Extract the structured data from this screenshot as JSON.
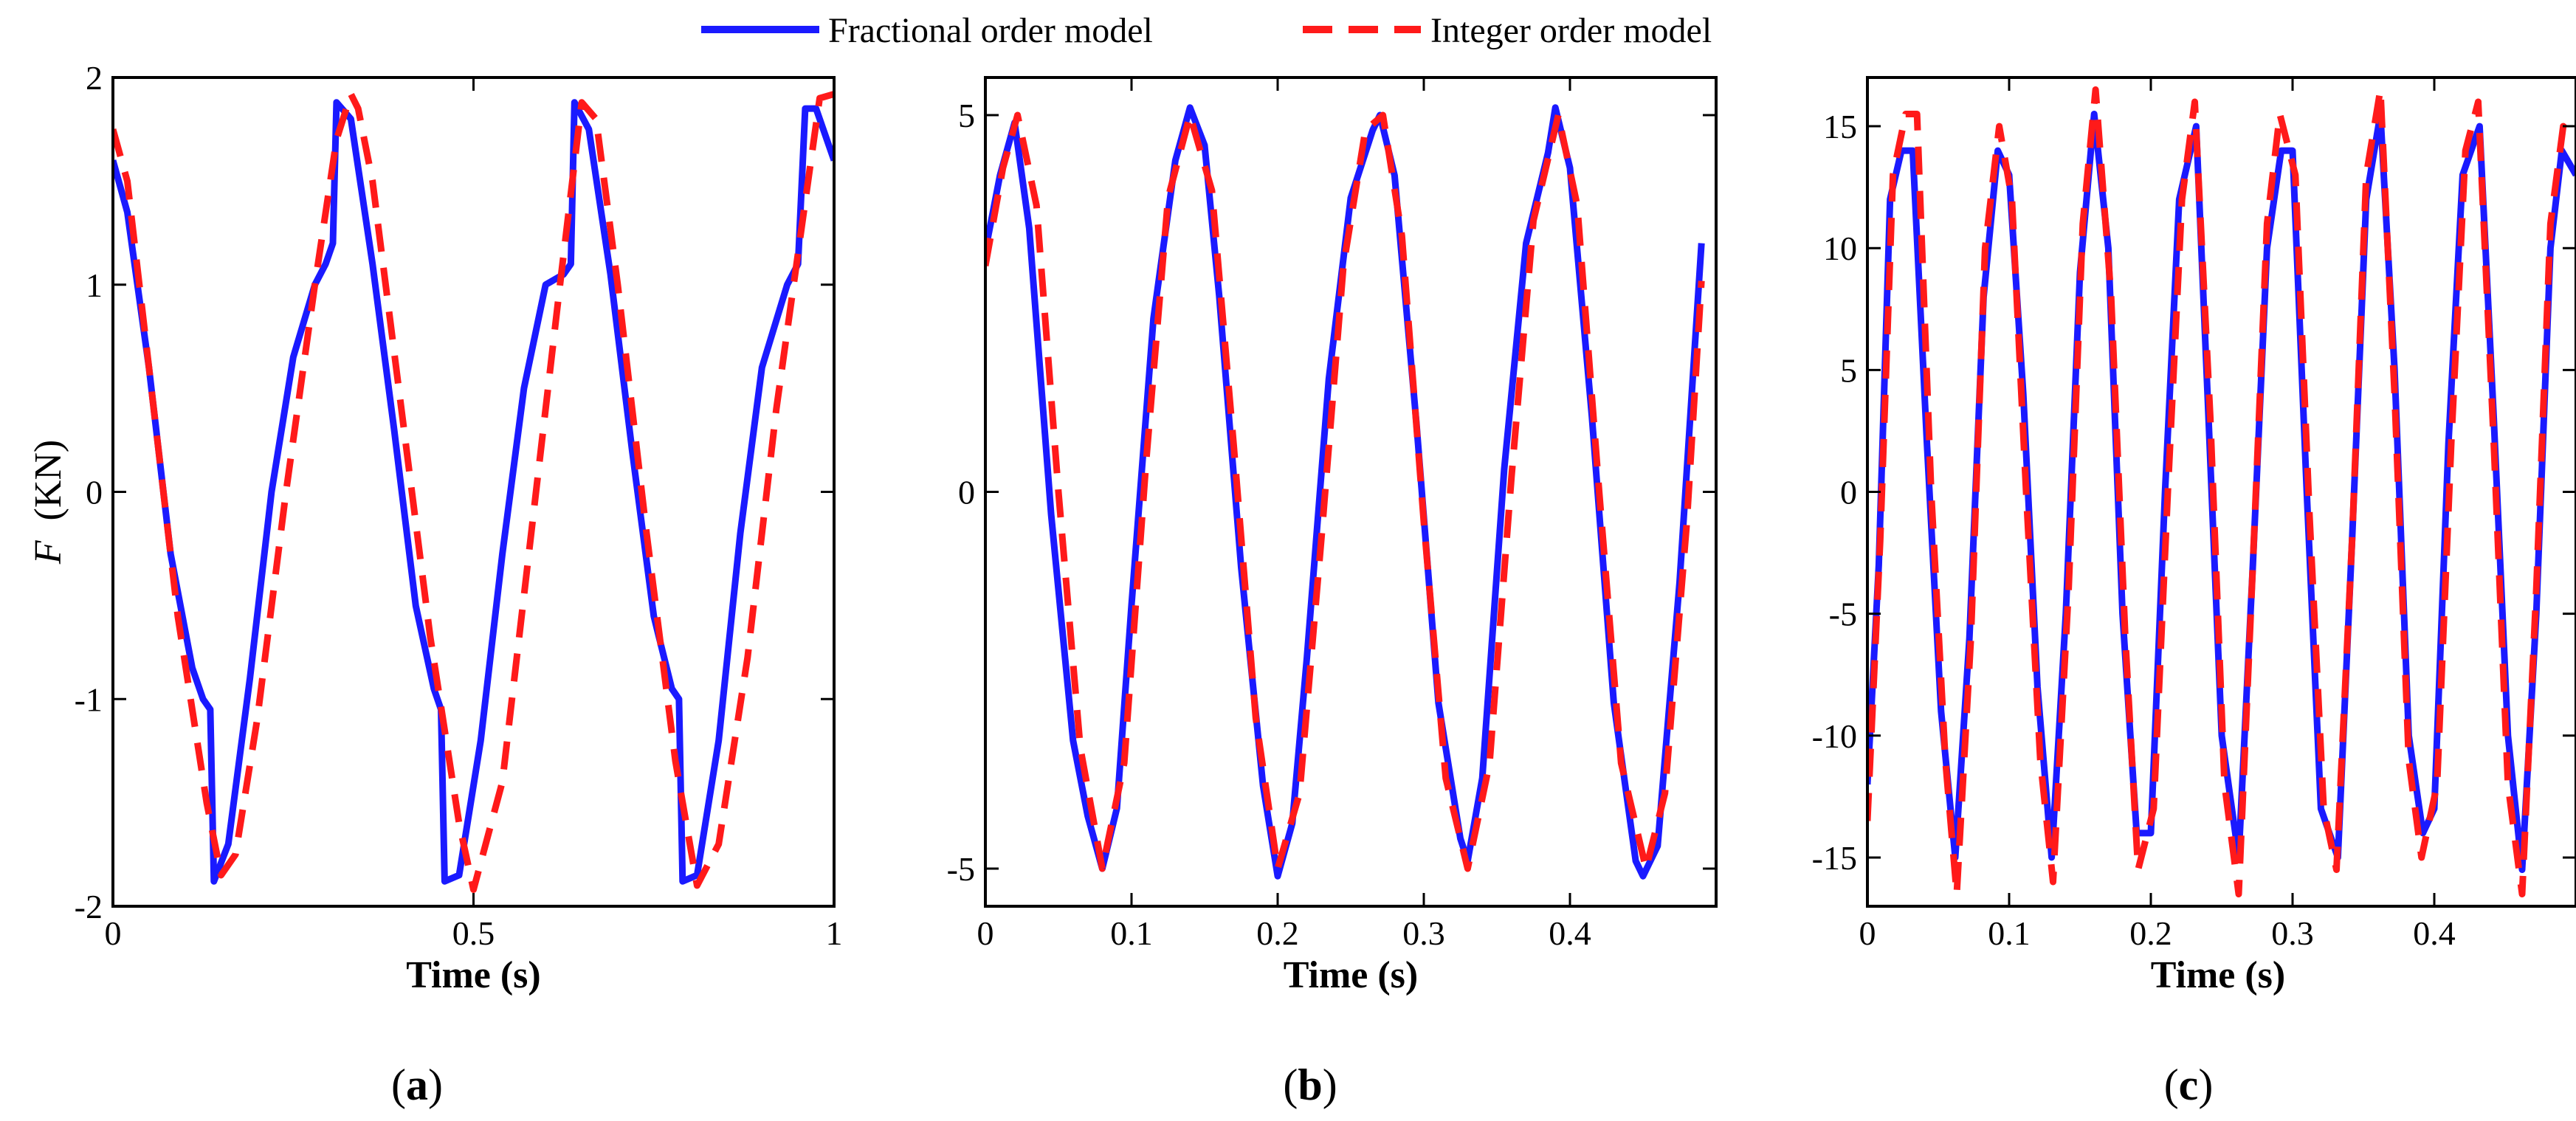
{
  "legend": {
    "items": [
      {
        "label": "Fractional order model",
        "color": "#1a1aff",
        "style": "solid"
      },
      {
        "label": "Integer order model",
        "color": "#ff1a1a",
        "style": "dashed"
      }
    ]
  },
  "panel_labels": [
    "a",
    "b",
    "c"
  ],
  "chart_data": [
    {
      "type": "line",
      "title": "",
      "panel": "(a)",
      "xlabel": "Time (s)",
      "ylabel_italic": "F",
      "ylabel_rest": "(KN)",
      "xlim": [
        0,
        1
      ],
      "ylim": [
        -2,
        2
      ],
      "xticks": [
        0,
        0.5,
        1
      ],
      "xtick_labels": [
        "0",
        "0.5",
        "1"
      ],
      "yticks": [
        -2,
        -1,
        0,
        1,
        2
      ],
      "ytick_labels": [
        "-2",
        "-1",
        "0",
        "1",
        "2"
      ],
      "grid": false,
      "series": [
        {
          "name": "Fractional order model",
          "x": [
            0.0,
            0.02,
            0.05,
            0.08,
            0.11,
            0.125,
            0.135,
            0.14,
            0.16,
            0.19,
            0.22,
            0.25,
            0.28,
            0.295,
            0.305,
            0.31,
            0.33,
            0.36,
            0.39,
            0.42,
            0.445,
            0.455,
            0.46,
            0.48,
            0.51,
            0.54,
            0.57,
            0.6,
            0.625,
            0.635,
            0.64,
            0.66,
            0.69,
            0.72,
            0.75,
            0.775,
            0.785,
            0.79,
            0.81,
            0.84,
            0.87,
            0.9,
            0.935,
            0.95,
            0.96,
            0.975,
            1.0
          ],
          "y": [
            1.6,
            1.35,
            0.6,
            -0.3,
            -0.85,
            -1.0,
            -1.05,
            -1.88,
            -1.7,
            -0.9,
            0.0,
            0.65,
            1.0,
            1.1,
            1.2,
            1.88,
            1.8,
            1.1,
            0.3,
            -0.55,
            -0.95,
            -1.05,
            -1.88,
            -1.85,
            -1.2,
            -0.3,
            0.5,
            1.0,
            1.05,
            1.1,
            1.88,
            1.75,
            1.05,
            0.2,
            -0.6,
            -0.95,
            -1.0,
            -1.88,
            -1.85,
            -1.2,
            -0.2,
            0.6,
            1.0,
            1.1,
            1.85,
            1.85,
            1.6
          ]
        },
        {
          "name": "Integer order model",
          "x": [
            0.0,
            0.02,
            0.05,
            0.09,
            0.13,
            0.15,
            0.17,
            0.2,
            0.24,
            0.28,
            0.31,
            0.33,
            0.34,
            0.36,
            0.4,
            0.44,
            0.48,
            0.5,
            0.54,
            0.58,
            0.62,
            0.65,
            0.67,
            0.7,
            0.74,
            0.78,
            0.81,
            0.84,
            0.88,
            0.92,
            0.96,
            0.98,
            1.0
          ],
          "y": [
            1.75,
            1.5,
            0.6,
            -0.6,
            -1.5,
            -1.85,
            -1.75,
            -1.1,
            0.0,
            1.0,
            1.7,
            1.92,
            1.85,
            1.5,
            0.4,
            -0.7,
            -1.6,
            -1.92,
            -1.4,
            -0.2,
            1.0,
            1.88,
            1.8,
            1.0,
            -0.2,
            -1.3,
            -1.9,
            -1.7,
            -0.8,
            0.4,
            1.4,
            1.9,
            1.92
          ]
        }
      ]
    },
    {
      "type": "line",
      "title": "",
      "panel": "(b)",
      "xlabel": "Time (s)",
      "ylabel": "",
      "xlim": [
        0,
        0.5
      ],
      "ylim": [
        -5.5,
        5.5
      ],
      "xticks": [
        0,
        0.1,
        0.2,
        0.3,
        0.4
      ],
      "xtick_labels": [
        "0",
        "0.1",
        "0.2",
        "0.3",
        "0.4"
      ],
      "yticks": [
        -5,
        0,
        5
      ],
      "ytick_labels": [
        "-5",
        "0",
        "5"
      ],
      "grid": false,
      "series": [
        {
          "name": "Fractional order model",
          "x": [
            0.0,
            0.01,
            0.02,
            0.03,
            0.045,
            0.06,
            0.07,
            0.08,
            0.09,
            0.1,
            0.115,
            0.13,
            0.14,
            0.15,
            0.16,
            0.175,
            0.19,
            0.2,
            0.21,
            0.22,
            0.235,
            0.25,
            0.265,
            0.27,
            0.28,
            0.295,
            0.31,
            0.325,
            0.33,
            0.34,
            0.355,
            0.37,
            0.385,
            0.39,
            0.4,
            0.415,
            0.43,
            0.445,
            0.45,
            0.46,
            0.475,
            0.49
          ],
          "y": [
            3.2,
            4.2,
            4.9,
            3.5,
            -0.3,
            -3.3,
            -4.3,
            -5.0,
            -4.2,
            -1.5,
            2.3,
            4.4,
            5.1,
            4.6,
            2.6,
            -1.0,
            -3.9,
            -5.1,
            -4.4,
            -2.2,
            1.5,
            3.9,
            4.8,
            5.0,
            4.2,
            0.9,
            -2.8,
            -4.6,
            -4.9,
            -3.8,
            0.3,
            3.3,
            4.5,
            5.1,
            4.3,
            1.0,
            -2.8,
            -4.9,
            -5.1,
            -4.7,
            -1.2,
            3.3
          ]
        },
        {
          "name": "Integer order model",
          "x": [
            0.0,
            0.012,
            0.022,
            0.035,
            0.05,
            0.065,
            0.08,
            0.095,
            0.11,
            0.125,
            0.14,
            0.155,
            0.17,
            0.185,
            0.2,
            0.215,
            0.23,
            0.245,
            0.26,
            0.272,
            0.285,
            0.3,
            0.315,
            0.33,
            0.345,
            0.36,
            0.375,
            0.392,
            0.405,
            0.42,
            0.435,
            0.452,
            0.465,
            0.48,
            0.49
          ],
          "y": [
            3.0,
            4.3,
            5.0,
            3.8,
            0.0,
            -3.4,
            -5.0,
            -3.6,
            0.4,
            3.9,
            5.0,
            4.0,
            0.6,
            -3.0,
            -5.0,
            -4.0,
            -0.6,
            3.0,
            4.8,
            5.0,
            3.4,
            -0.4,
            -3.8,
            -5.0,
            -3.6,
            0.2,
            3.6,
            5.0,
            3.8,
            0.0,
            -3.6,
            -5.0,
            -4.0,
            -0.4,
            2.8
          ]
        }
      ]
    },
    {
      "type": "line",
      "title": "",
      "panel": "(c)",
      "xlabel": "Time (s)",
      "ylabel": "",
      "xlim": [
        0,
        0.5
      ],
      "ylim": [
        -17,
        17
      ],
      "xticks": [
        0,
        0.1,
        0.2,
        0.3,
        0.4
      ],
      "xtick_labels": [
        "0",
        "0.1",
        "0.2",
        "0.3",
        "0.4"
      ],
      "yticks": [
        -15,
        -10,
        -5,
        0,
        5,
        10,
        15
      ],
      "ytick_labels": [
        "-15",
        "-10",
        "-5",
        "0",
        "5",
        "10",
        "15"
      ],
      "grid": false,
      "series": [
        {
          "name": "Fractional order model",
          "x": [
            0.0,
            0.008,
            0.016,
            0.024,
            0.032,
            0.042,
            0.052,
            0.062,
            0.072,
            0.082,
            0.092,
            0.1,
            0.11,
            0.12,
            0.13,
            0.14,
            0.15,
            0.16,
            0.17,
            0.18,
            0.19,
            0.2,
            0.21,
            0.22,
            0.232,
            0.24,
            0.25,
            0.262,
            0.272,
            0.282,
            0.292,
            0.3,
            0.31,
            0.32,
            0.332,
            0.342,
            0.352,
            0.362,
            0.372,
            0.382,
            0.392,
            0.4,
            0.41,
            0.42,
            0.432,
            0.442,
            0.452,
            0.462,
            0.472,
            0.482,
            0.49,
            0.5
          ],
          "y": [
            -12.0,
            -3.0,
            12.0,
            14.0,
            14.0,
            2.0,
            -9.0,
            -15.0,
            -6.0,
            8.0,
            14.0,
            13.0,
            4.0,
            -8.0,
            -15.0,
            -5.0,
            9.0,
            15.5,
            10.0,
            -5.0,
            -14.0,
            -14.0,
            0.0,
            12.0,
            15.0,
            4.0,
            -10.0,
            -15.0,
            -3.0,
            10.0,
            14.0,
            14.0,
            0.0,
            -13.0,
            -15.0,
            -2.0,
            12.0,
            15.5,
            5.0,
            -10.0,
            -14.0,
            -13.0,
            2.0,
            13.0,
            15.0,
            3.0,
            -10.0,
            -15.5,
            -5.0,
            10.0,
            14.0,
            13.0
          ]
        },
        {
          "name": "Integer order model",
          "x": [
            0.0,
            0.009,
            0.018,
            0.027,
            0.035,
            0.045,
            0.055,
            0.063,
            0.073,
            0.083,
            0.093,
            0.102,
            0.112,
            0.122,
            0.131,
            0.142,
            0.152,
            0.161,
            0.172,
            0.182,
            0.191,
            0.202,
            0.212,
            0.222,
            0.231,
            0.242,
            0.252,
            0.262,
            0.272,
            0.282,
            0.291,
            0.302,
            0.312,
            0.322,
            0.331,
            0.342,
            0.352,
            0.362,
            0.372,
            0.382,
            0.391,
            0.402,
            0.412,
            0.422,
            0.431,
            0.442,
            0.452,
            0.462,
            0.472,
            0.482,
            0.491,
            0.5
          ],
          "y": [
            -13.5,
            -2.0,
            13.0,
            15.5,
            15.5,
            0.0,
            -11.0,
            -16.5,
            -6.0,
            10.0,
            15.0,
            12.0,
            0.0,
            -11.0,
            -16.0,
            -4.0,
            11.0,
            16.5,
            8.0,
            -6.0,
            -15.5,
            -13.0,
            0.0,
            12.0,
            16.0,
            3.0,
            -12.0,
            -16.5,
            -3.0,
            11.0,
            15.5,
            13.0,
            -1.0,
            -13.0,
            -15.5,
            -2.0,
            13.0,
            16.5,
            4.0,
            -11.0,
            -15.0,
            -12.0,
            2.0,
            14.0,
            16.0,
            2.0,
            -12.0,
            -16.5,
            -4.0,
            11.0,
            15.0,
            14.5
          ]
        }
      ]
    }
  ]
}
